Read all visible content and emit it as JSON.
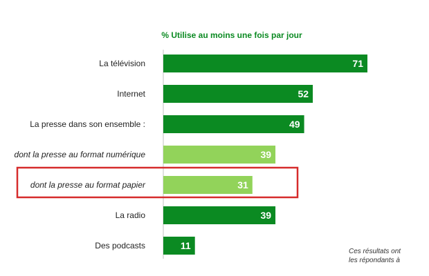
{
  "chart_data": {
    "type": "bar",
    "orientation": "horizontal",
    "title": "% Utilise au moins une fois par jour",
    "categories": [
      "La télévision",
      "Internet",
      "La presse dans son ensemble :",
      "dont la presse au format numérique",
      "dont la presse au format papier",
      "La radio",
      "Des podcasts"
    ],
    "values": [
      71,
      52,
      49,
      39,
      31,
      39,
      11
    ],
    "italic_categories": [
      3,
      4
    ],
    "highlighted_index": 4,
    "xlim": [
      0,
      80
    ],
    "grid": false,
    "colors": {
      "bar_dark": "#0b8a22",
      "bar_light": "#92d35a",
      "title": "#0b8a22",
      "highlight_box": "#d62b2b",
      "axis": "#c0c0c0"
    },
    "note_lines": [
      "Ces résultats ont",
      "les répondants à"
    ]
  }
}
